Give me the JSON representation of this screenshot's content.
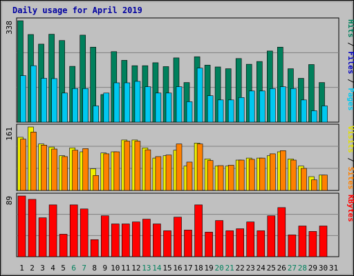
{
  "chart_data": {
    "type": "bar",
    "title": "Daily usage for April 2019",
    "categories": [
      "1",
      "2",
      "3",
      "4",
      "5",
      "6",
      "7",
      "8",
      "9",
      "10",
      "11",
      "12",
      "13",
      "14",
      "15",
      "16",
      "17",
      "18",
      "19",
      "20",
      "21",
      "22",
      "23",
      "24",
      "25",
      "26",
      "27",
      "28",
      "29",
      "30",
      "31"
    ],
    "weekend_days": [
      "6",
      "7",
      "13",
      "14",
      "20",
      "21",
      "27",
      "28"
    ],
    "panels": [
      {
        "id": "top",
        "max_label": "338",
        "ymax": 338,
        "side_label": [
          "Hits",
          "Files",
          "Pages"
        ],
        "series": [
          {
            "name": "Hits",
            "color": "#00805c",
            "values": [
              338,
              292,
              260,
              293,
              272,
              186,
              290,
              250,
              92,
              235,
              206,
              188,
              188,
              198,
              185,
              214,
              132,
              218,
              190,
              184,
              178,
              212,
              193,
              202,
              237,
              250,
              178,
              146,
              192,
              132,
              0
            ]
          },
          {
            "name": "Files",
            "color": "#0000c0",
            "values": [
              0,
              0,
              0,
              0,
              0,
              0,
              0,
              0,
              0,
              0,
              0,
              0,
              0,
              0,
              0,
              0,
              0,
              0,
              0,
              0,
              0,
              0,
              0,
              0,
              0,
              0,
              0,
              0,
              0,
              0,
              0
            ]
          },
          {
            "name": "Pages",
            "color": "#00c8f0",
            "values": [
              155,
              188,
              146,
              145,
              97,
              112,
              112,
              54,
              97,
              131,
              131,
              136,
              118,
              97,
              97,
              118,
              68,
              180,
              88,
              74,
              74,
              82,
              104,
              104,
              112,
              118,
              112,
              74,
              38,
              54,
              0
            ]
          }
        ]
      },
      {
        "id": "middle",
        "max_label": "161",
        "ymax": 161,
        "side_label": [
          "Visits",
          "Sites"
        ],
        "series": [
          {
            "name": "Visits",
            "color": "#f0f000",
            "values": [
              135,
              161,
              118,
              110,
              88,
              108,
              98,
              55,
              95,
              98,
              128,
              128,
              108,
              82,
              88,
              102,
              62,
              120,
              80,
              62,
              62,
              77,
              82,
              82,
              88,
              98,
              80,
              62,
              35,
              39,
              0
            ]
          },
          {
            "name": "Sites",
            "color": "#ff8000",
            "values": [
              130,
              148,
              115,
              105,
              86,
              102,
              106,
              38,
              93,
              98,
              125,
              125,
              103,
              86,
              90,
              118,
              72,
              118,
              76,
              63,
              64,
              77,
              79,
              82,
              93,
              101,
              77,
              56,
              27,
              39,
              0
            ]
          }
        ]
      },
      {
        "id": "bottom",
        "max_label": "89",
        "ymax": 89,
        "side_label": [
          "KBytes"
        ],
        "series": [
          {
            "name": "KBytes",
            "color": "#ff0000",
            "values": [
              89,
              84,
              57,
              76,
              33,
              76,
              70,
              25,
              60,
              48,
              48,
              51,
              55,
              48,
              38,
              58,
              39,
              76,
              36,
              53,
              38,
              41,
              51,
              38,
              60,
              72,
              32,
              45,
              37,
              45,
              0
            ]
          }
        ]
      }
    ]
  }
}
